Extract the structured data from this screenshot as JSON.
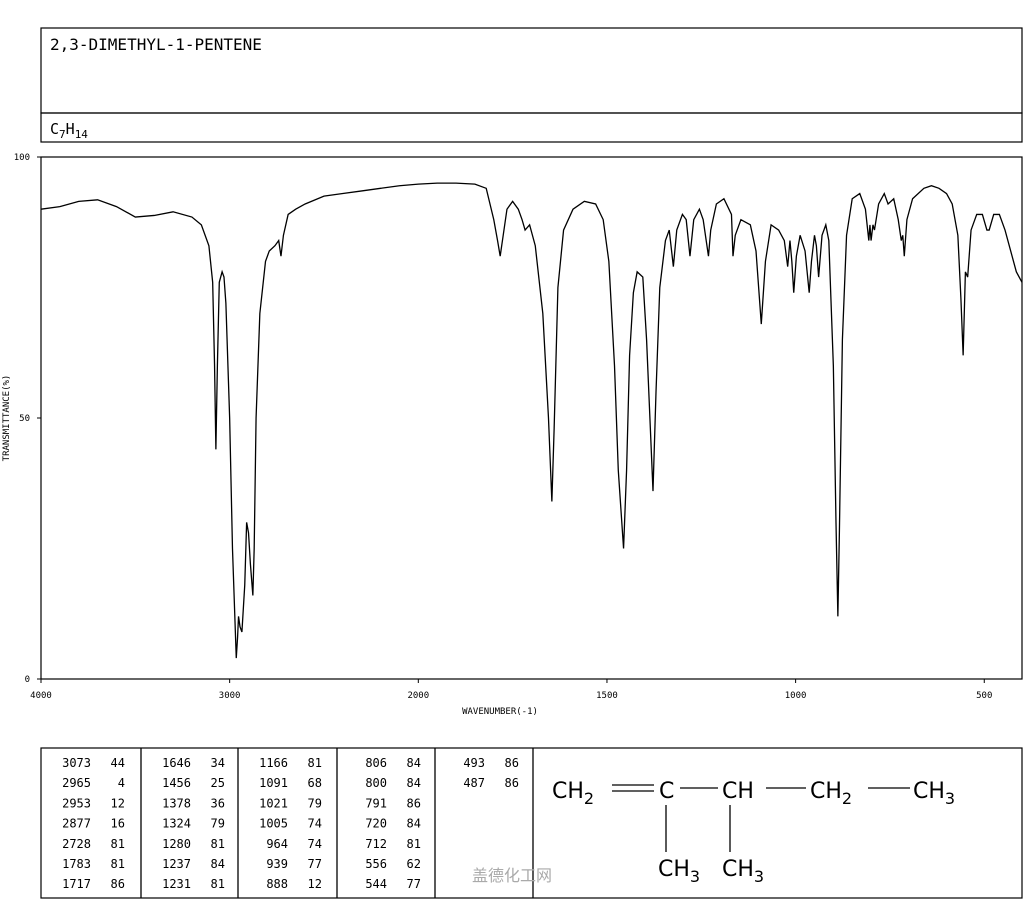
{
  "header": {
    "title": "2,3-DIMETHYL-1-PENTENE",
    "formula": [
      {
        "text": "C",
        "sub": "7"
      },
      {
        "text": "H",
        "sub": "14"
      }
    ]
  },
  "chart_data": {
    "type": "line",
    "x_label": "WAVENUMBER(-1)",
    "y_label": "TRANSMITTANCE(%)",
    "xlim": [
      4000,
      400
    ],
    "xticks": [
      4000,
      3000,
      2000,
      1500,
      1000,
      500
    ],
    "ylim": [
      0,
      100
    ],
    "yticks": [
      0,
      50,
      100
    ],
    "color": "#000000",
    "x": [
      4000,
      3900,
      3800,
      3700,
      3600,
      3500,
      3400,
      3300,
      3200,
      3150,
      3110,
      3090,
      3080,
      3073,
      3065,
      3055,
      3040,
      3030,
      3020,
      3000,
      2985,
      2965,
      2958,
      2953,
      2945,
      2935,
      2920,
      2910,
      2900,
      2890,
      2877,
      2870,
      2860,
      2840,
      2810,
      2790,
      2760,
      2740,
      2728,
      2715,
      2690,
      2650,
      2600,
      2500,
      2400,
      2300,
      2200,
      2100,
      2000,
      1950,
      1900,
      1850,
      1820,
      1800,
      1790,
      1783,
      1775,
      1765,
      1750,
      1735,
      1725,
      1717,
      1705,
      1690,
      1670,
      1655,
      1646,
      1640,
      1630,
      1615,
      1590,
      1560,
      1530,
      1510,
      1495,
      1480,
      1470,
      1456,
      1448,
      1440,
      1430,
      1420,
      1405,
      1395,
      1385,
      1378,
      1370,
      1360,
      1345,
      1335,
      1324,
      1315,
      1300,
      1290,
      1280,
      1270,
      1255,
      1245,
      1237,
      1231,
      1225,
      1210,
      1190,
      1170,
      1166,
      1160,
      1145,
      1120,
      1105,
      1091,
      1080,
      1065,
      1045,
      1030,
      1021,
      1015,
      1010,
      1005,
      998,
      988,
      975,
      964,
      958,
      950,
      945,
      939,
      930,
      920,
      912,
      900,
      893,
      888,
      884,
      876,
      865,
      850,
      830,
      815,
      806,
      803,
      800,
      795,
      791,
      780,
      765,
      755,
      740,
      728,
      720,
      716,
      712,
      705,
      690,
      660,
      640,
      620,
      600,
      585,
      570,
      562,
      556,
      550,
      544,
      535,
      520,
      505,
      493,
      487,
      475,
      460,
      445,
      430,
      415,
      400
    ],
    "values": [
      90,
      90.5,
      91.5,
      91.8,
      90.5,
      88.5,
      88.8,
      89.5,
      88.5,
      87,
      83,
      76,
      60,
      44,
      60,
      76,
      78,
      77,
      72,
      50,
      25,
      4,
      8,
      12,
      10,
      9,
      18,
      30,
      28,
      22,
      16,
      25,
      50,
      70,
      80,
      82,
      83,
      84,
      81,
      85,
      89,
      90,
      91,
      92.5,
      93,
      93.5,
      94,
      94.5,
      94.8,
      95,
      95,
      94.8,
      94,
      88,
      84,
      81,
      85,
      90,
      91.5,
      90,
      88,
      86,
      87,
      83,
      70,
      50,
      34,
      48,
      75,
      86,
      90,
      91.5,
      91,
      88,
      80,
      60,
      40,
      25,
      40,
      62,
      74,
      78,
      77,
      65,
      48,
      36,
      55,
      75,
      84,
      86,
      79,
      86,
      89,
      88,
      81,
      88,
      90,
      88,
      84,
      81,
      86,
      91,
      92,
      89,
      81,
      85,
      88,
      87,
      82,
      68,
      80,
      87,
      86,
      84,
      79,
      84,
      80,
      74,
      81,
      85,
      82,
      74,
      80,
      85,
      83,
      77,
      85,
      87,
      84,
      60,
      30,
      12,
      28,
      65,
      85,
      92,
      93,
      90,
      84,
      87,
      84,
      87,
      86,
      91,
      93,
      91,
      92,
      88,
      84,
      85,
      81,
      88,
      92,
      94,
      94.5,
      94,
      93,
      91,
      85,
      73,
      62,
      78,
      77,
      86,
      89,
      89,
      86,
      86,
      89,
      89,
      86,
      82,
      78,
      76
    ]
  },
  "peaks": [
    [
      3073,
      44
    ],
    [
      2965,
      4
    ],
    [
      2953,
      12
    ],
    [
      2877,
      16
    ],
    [
      2728,
      81
    ],
    [
      1783,
      81
    ],
    [
      1717,
      86
    ],
    [
      1646,
      34
    ],
    [
      1456,
      25
    ],
    [
      1378,
      36
    ],
    [
      1324,
      79
    ],
    [
      1280,
      81
    ],
    [
      1237,
      84
    ],
    [
      1231,
      81
    ],
    [
      1166,
      81
    ],
    [
      1091,
      68
    ],
    [
      1021,
      79
    ],
    [
      1005,
      74
    ],
    [
      964,
      74
    ],
    [
      939,
      77
    ],
    [
      888,
      12
    ],
    [
      806,
      84
    ],
    [
      800,
      84
    ],
    [
      791,
      86
    ],
    [
      720,
      84
    ],
    [
      712,
      81
    ],
    [
      556,
      62
    ],
    [
      544,
      77
    ],
    [
      493,
      86
    ],
    [
      487,
      86
    ]
  ],
  "structure": [
    {
      "text": "CH",
      "sub": "2"
    },
    {
      "text": "C"
    },
    {
      "text": "CH"
    },
    {
      "text": "CH",
      "sub": "2"
    },
    {
      "text": "CH",
      "sub": "3"
    },
    {
      "text": "CH",
      "sub": "3"
    },
    {
      "text": "CH",
      "sub": "3"
    }
  ],
  "watermark": "盖德化工网"
}
